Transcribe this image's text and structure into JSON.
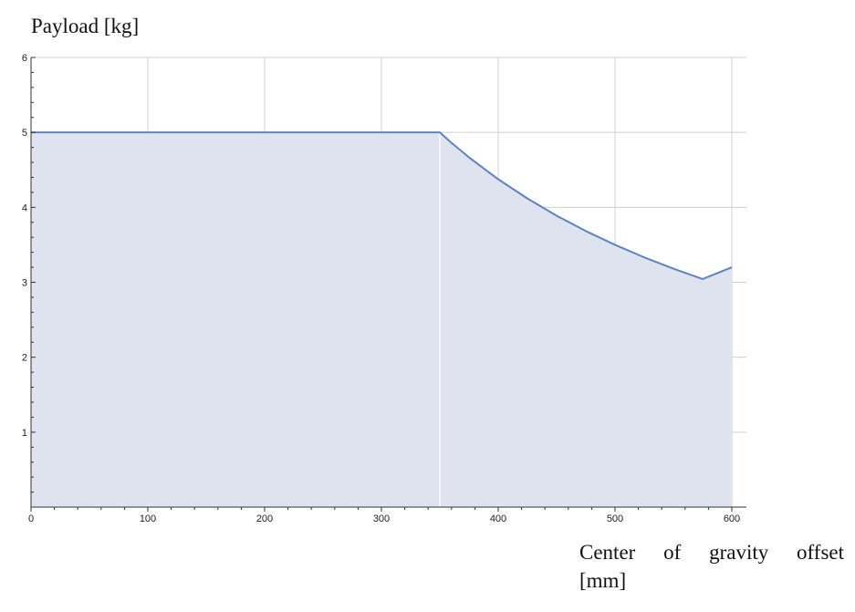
{
  "chart_data": {
    "type": "area",
    "title": "",
    "ylabel": "Payload [kg]",
    "xlabel_line1": "Center of gravity offset",
    "xlabel_line2": "[mm]",
    "xlim": [
      0,
      600
    ],
    "ylim": [
      0,
      6
    ],
    "x_major_ticks": [
      0,
      100,
      200,
      300,
      400,
      500,
      600
    ],
    "x_minor_step": 20,
    "y_major_ticks": [
      1,
      2,
      3,
      4,
      5,
      6
    ],
    "y_minor_step": 0.2,
    "grid": true,
    "series": [
      {
        "name": "Payload",
        "x": [
          0,
          350,
          360,
          375,
          400,
          425,
          450,
          475,
          500,
          525,
          550,
          575,
          600
        ],
        "values": [
          5,
          5,
          4.861,
          4.667,
          4.375,
          4.118,
          3.889,
          3.684,
          3.5,
          3.333,
          3.182,
          3.043,
          3.2
        ]
      }
    ],
    "colors": {
      "line": "#5f84be",
      "fill": "#dfe3ef",
      "grid": "#cfcfcf",
      "axis": "#333333"
    }
  }
}
